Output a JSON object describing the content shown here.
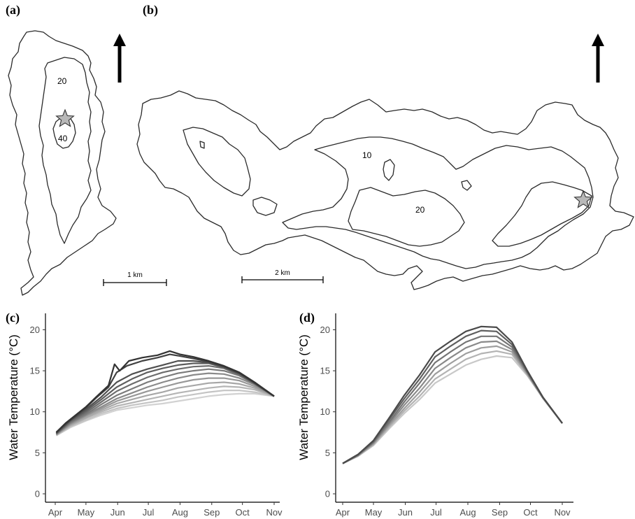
{
  "panels": {
    "a": "(a)",
    "b": "(b)",
    "c": "(c)",
    "d": "(d)"
  },
  "maps": {
    "a": {
      "contours": [
        "20",
        "40"
      ],
      "scale_label": "1 km"
    },
    "b": {
      "contours": [
        "10",
        "20"
      ],
      "scale_label": "2 km"
    },
    "colors": {
      "outline": "#2a2a2a",
      "star_fill": "#b8b8b8"
    }
  },
  "chart_data": [
    {
      "type": "line",
      "panel": "(c)",
      "xlabel": "",
      "ylabel": "Water Temperature (°C)",
      "x_ticks": [
        "Apr",
        "May",
        "Jun",
        "Jul",
        "Aug",
        "Sep",
        "Oct",
        "Nov"
      ],
      "x_tick_days": [
        0,
        30,
        61,
        91,
        122,
        153,
        183,
        214
      ],
      "ylim": [
        0,
        22
      ],
      "y_ticks": [
        0,
        5,
        10,
        15,
        20
      ],
      "legend": "none",
      "colors": {
        "dark": "#333333",
        "light": "#d2d2d2"
      },
      "series": [
        {
          "x": [
            1,
            10,
            20,
            30,
            40,
            52,
            58,
            63,
            72,
            85,
            100,
            112,
            122,
            135,
            150,
            165,
            180,
            195,
            214
          ],
          "y": [
            7.5,
            8.6,
            9.6,
            10.6,
            11.8,
            13.2,
            15.8,
            15.0,
            16.2,
            16.6,
            16.9,
            17.4,
            17.0,
            16.7,
            16.2,
            15.6,
            14.8,
            13.6,
            11.9
          ]
        },
        {
          "x": [
            1,
            10,
            20,
            30,
            40,
            52,
            60,
            70,
            85,
            100,
            112,
            122,
            135,
            150,
            165,
            180,
            195,
            214
          ],
          "y": [
            7.5,
            8.5,
            9.5,
            10.5,
            11.7,
            13.0,
            14.8,
            15.6,
            16.2,
            16.6,
            17.0,
            16.8,
            16.5,
            16.1,
            15.5,
            14.7,
            13.5,
            11.9
          ]
        },
        {
          "x": [
            1,
            15,
            30,
            45,
            60,
            75,
            90,
            105,
            120,
            135,
            150,
            165,
            180,
            195,
            214
          ],
          "y": [
            7.4,
            9.0,
            10.3,
            11.8,
            13.6,
            14.6,
            15.2,
            15.7,
            16.2,
            16.2,
            16.0,
            15.5,
            14.7,
            13.5,
            11.9
          ]
        },
        {
          "x": [
            1,
            15,
            30,
            45,
            60,
            75,
            90,
            105,
            120,
            135,
            150,
            165,
            180,
            195,
            214
          ],
          "y": [
            7.4,
            8.9,
            10.1,
            11.5,
            13.0,
            14.0,
            14.8,
            15.3,
            15.7,
            15.9,
            15.9,
            15.4,
            14.6,
            13.5,
            11.9
          ]
        },
        {
          "x": [
            1,
            15,
            30,
            45,
            60,
            75,
            90,
            105,
            120,
            135,
            150,
            165,
            180,
            195,
            214
          ],
          "y": [
            7.3,
            8.8,
            9.9,
            11.2,
            12.5,
            13.4,
            14.2,
            14.8,
            15.2,
            15.5,
            15.6,
            15.3,
            14.5,
            13.4,
            11.9
          ]
        },
        {
          "x": [
            1,
            15,
            30,
            45,
            60,
            75,
            90,
            105,
            120,
            135,
            150,
            165,
            180,
            195,
            214
          ],
          "y": [
            7.3,
            8.7,
            9.7,
            10.9,
            12.0,
            12.8,
            13.6,
            14.2,
            14.7,
            15.0,
            15.2,
            15.0,
            14.4,
            13.4,
            11.9
          ]
        },
        {
          "x": [
            1,
            15,
            30,
            45,
            60,
            75,
            90,
            105,
            120,
            135,
            150,
            165,
            180,
            195,
            214
          ],
          "y": [
            7.3,
            8.6,
            9.6,
            10.6,
            11.6,
            12.3,
            13.0,
            13.6,
            14.1,
            14.5,
            14.7,
            14.6,
            14.1,
            13.3,
            11.9
          ]
        },
        {
          "x": [
            1,
            15,
            30,
            45,
            60,
            75,
            90,
            105,
            120,
            135,
            150,
            165,
            180,
            195,
            214
          ],
          "y": [
            7.2,
            8.5,
            9.5,
            10.4,
            11.3,
            11.9,
            12.5,
            13.0,
            13.5,
            13.9,
            14.1,
            14.1,
            13.8,
            13.1,
            11.9
          ]
        },
        {
          "x": [
            1,
            15,
            30,
            45,
            60,
            75,
            90,
            105,
            120,
            135,
            150,
            165,
            180,
            195,
            214
          ],
          "y": [
            7.2,
            8.4,
            9.3,
            10.2,
            11.0,
            11.5,
            12.0,
            12.4,
            12.9,
            13.2,
            13.5,
            13.6,
            13.4,
            12.9,
            11.9
          ]
        },
        {
          "x": [
            1,
            15,
            30,
            45,
            60,
            75,
            90,
            105,
            120,
            135,
            150,
            165,
            180,
            195,
            214
          ],
          "y": [
            7.2,
            8.3,
            9.2,
            10.0,
            10.7,
            11.1,
            11.5,
            11.9,
            12.3,
            12.6,
            12.9,
            13.1,
            13.0,
            12.7,
            11.9
          ]
        },
        {
          "x": [
            1,
            15,
            30,
            45,
            60,
            75,
            90,
            105,
            120,
            135,
            150,
            165,
            180,
            195,
            214
          ],
          "y": [
            7.1,
            8.2,
            9.0,
            9.8,
            10.4,
            10.8,
            11.1,
            11.4,
            11.8,
            12.1,
            12.4,
            12.6,
            12.6,
            12.4,
            11.9
          ]
        },
        {
          "x": [
            1,
            15,
            30,
            45,
            60,
            75,
            90,
            105,
            120,
            135,
            150,
            165,
            180,
            195,
            214
          ],
          "y": [
            7.1,
            8.1,
            8.9,
            9.6,
            10.2,
            10.5,
            10.8,
            11.0,
            11.3,
            11.6,
            11.9,
            12.1,
            12.2,
            12.2,
            11.9
          ]
        }
      ]
    },
    {
      "type": "line",
      "panel": "(d)",
      "xlabel": "",
      "ylabel": "Water Temperature (°C)",
      "x_ticks": [
        "Apr",
        "May",
        "Jun",
        "Jul",
        "Aug",
        "Sep",
        "Oct",
        "Nov"
      ],
      "x_tick_days": [
        0,
        30,
        61,
        91,
        122,
        153,
        183,
        214
      ],
      "ylim": [
        0,
        22
      ],
      "y_ticks": [
        0,
        5,
        10,
        15,
        20
      ],
      "legend": "none",
      "colors": {
        "dark": "#4a4a4a",
        "light": "#c8c8c8"
      },
      "series": [
        {
          "x": [
            0,
            15,
            30,
            45,
            60,
            75,
            90,
            105,
            120,
            135,
            150,
            165,
            180,
            195,
            214
          ],
          "y": [
            3.7,
            4.8,
            6.5,
            9.2,
            12.0,
            14.5,
            17.3,
            18.6,
            19.8,
            20.4,
            20.3,
            18.5,
            15.0,
            11.8,
            8.6
          ]
        },
        {
          "x": [
            0,
            15,
            30,
            45,
            60,
            75,
            90,
            105,
            120,
            135,
            150,
            165,
            180,
            195,
            214
          ],
          "y": [
            3.7,
            4.8,
            6.4,
            9.0,
            11.6,
            14.0,
            16.7,
            18.0,
            19.2,
            19.9,
            19.8,
            18.2,
            14.9,
            11.8,
            8.6
          ]
        },
        {
          "x": [
            0,
            15,
            30,
            45,
            60,
            75,
            90,
            105,
            120,
            135,
            150,
            165,
            180,
            195,
            214
          ],
          "y": [
            3.7,
            4.7,
            6.3,
            8.7,
            11.2,
            13.5,
            16.0,
            17.3,
            18.5,
            19.2,
            19.2,
            17.9,
            14.8,
            11.8,
            8.6
          ]
        },
        {
          "x": [
            0,
            15,
            30,
            45,
            60,
            75,
            90,
            105,
            120,
            135,
            150,
            165,
            180,
            195,
            214
          ],
          "y": [
            3.7,
            4.7,
            6.2,
            8.5,
            10.8,
            12.9,
            15.3,
            16.6,
            17.8,
            18.5,
            18.6,
            17.6,
            14.7,
            11.7,
            8.6
          ]
        },
        {
          "x": [
            0,
            15,
            30,
            45,
            60,
            75,
            90,
            105,
            120,
            135,
            150,
            165,
            180,
            195,
            214
          ],
          "y": [
            3.7,
            4.7,
            6.1,
            8.3,
            10.4,
            12.4,
            14.6,
            15.9,
            17.1,
            17.8,
            18.0,
            17.3,
            14.6,
            11.7,
            8.6
          ]
        },
        {
          "x": [
            0,
            15,
            30,
            45,
            60,
            75,
            90,
            105,
            120,
            135,
            150,
            165,
            180,
            195,
            214
          ],
          "y": [
            3.7,
            4.6,
            6.0,
            8.1,
            10.1,
            11.9,
            14.0,
            15.2,
            16.4,
            17.1,
            17.4,
            17.0,
            14.5,
            11.7,
            8.6
          ]
        },
        {
          "x": [
            0,
            15,
            30,
            45,
            60,
            75,
            90,
            105,
            120,
            135,
            150,
            165,
            180,
            195,
            214
          ],
          "y": [
            3.7,
            4.6,
            5.9,
            7.9,
            9.8,
            11.5,
            13.5,
            14.6,
            15.7,
            16.4,
            16.8,
            16.6,
            14.4,
            11.7,
            8.6
          ]
        }
      ]
    }
  ]
}
